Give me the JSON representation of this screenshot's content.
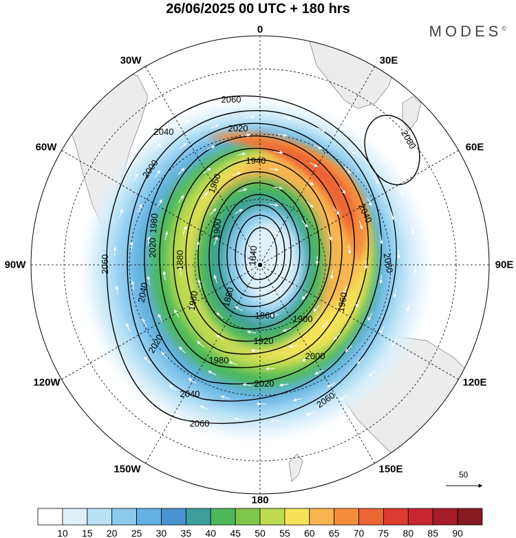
{
  "header": {
    "title": "26/06/2025  00 UTC  + 180 hrs",
    "brand": "MODES",
    "brand_mark": "©"
  },
  "map": {
    "projection": "south-polar-stereographic",
    "longitude_labels": {
      "top": "0",
      "top_left": "30W",
      "top_right": "30E",
      "upper_left": "60W",
      "upper_right": "60E",
      "left": "90W",
      "right": "90E",
      "lower_left": "120W",
      "lower_right": "120E",
      "bottom_left": "150W",
      "bottom_right": "150E",
      "bottom": "180"
    },
    "contour_labels": [
      "2060",
      "2040",
      "2020",
      "1940",
      "2000",
      "1960",
      "1980",
      "1920",
      "1900",
      "1840",
      "1860",
      "1880",
      "2080"
    ],
    "wind_reference": {
      "value": "50"
    }
  },
  "colorbar": {
    "colors": [
      "#ffffff",
      "#dff1fb",
      "#b9e2f6",
      "#8ccbee",
      "#64b0e2",
      "#4a93d0",
      "#3d9e9a",
      "#4cb85a",
      "#7ec74c",
      "#bdda50",
      "#f7e35a",
      "#f7b551",
      "#f48c3d",
      "#ec6534",
      "#dd3a30",
      "#c72630",
      "#a31c27",
      "#851a20"
    ],
    "labels": [
      "10",
      "15",
      "20",
      "25",
      "30",
      "35",
      "40",
      "45",
      "50",
      "55",
      "60",
      "65",
      "70",
      "75",
      "80",
      "85",
      "90"
    ]
  },
  "colors": {
    "land": "#ececec",
    "ocean": "#ffffff",
    "contour": "#000000",
    "wind_arrow": "#ffffff"
  },
  "icons": {
    "arrow": "wind-reference-arrow-icon",
    "pole": "south-pole-marker-icon"
  }
}
